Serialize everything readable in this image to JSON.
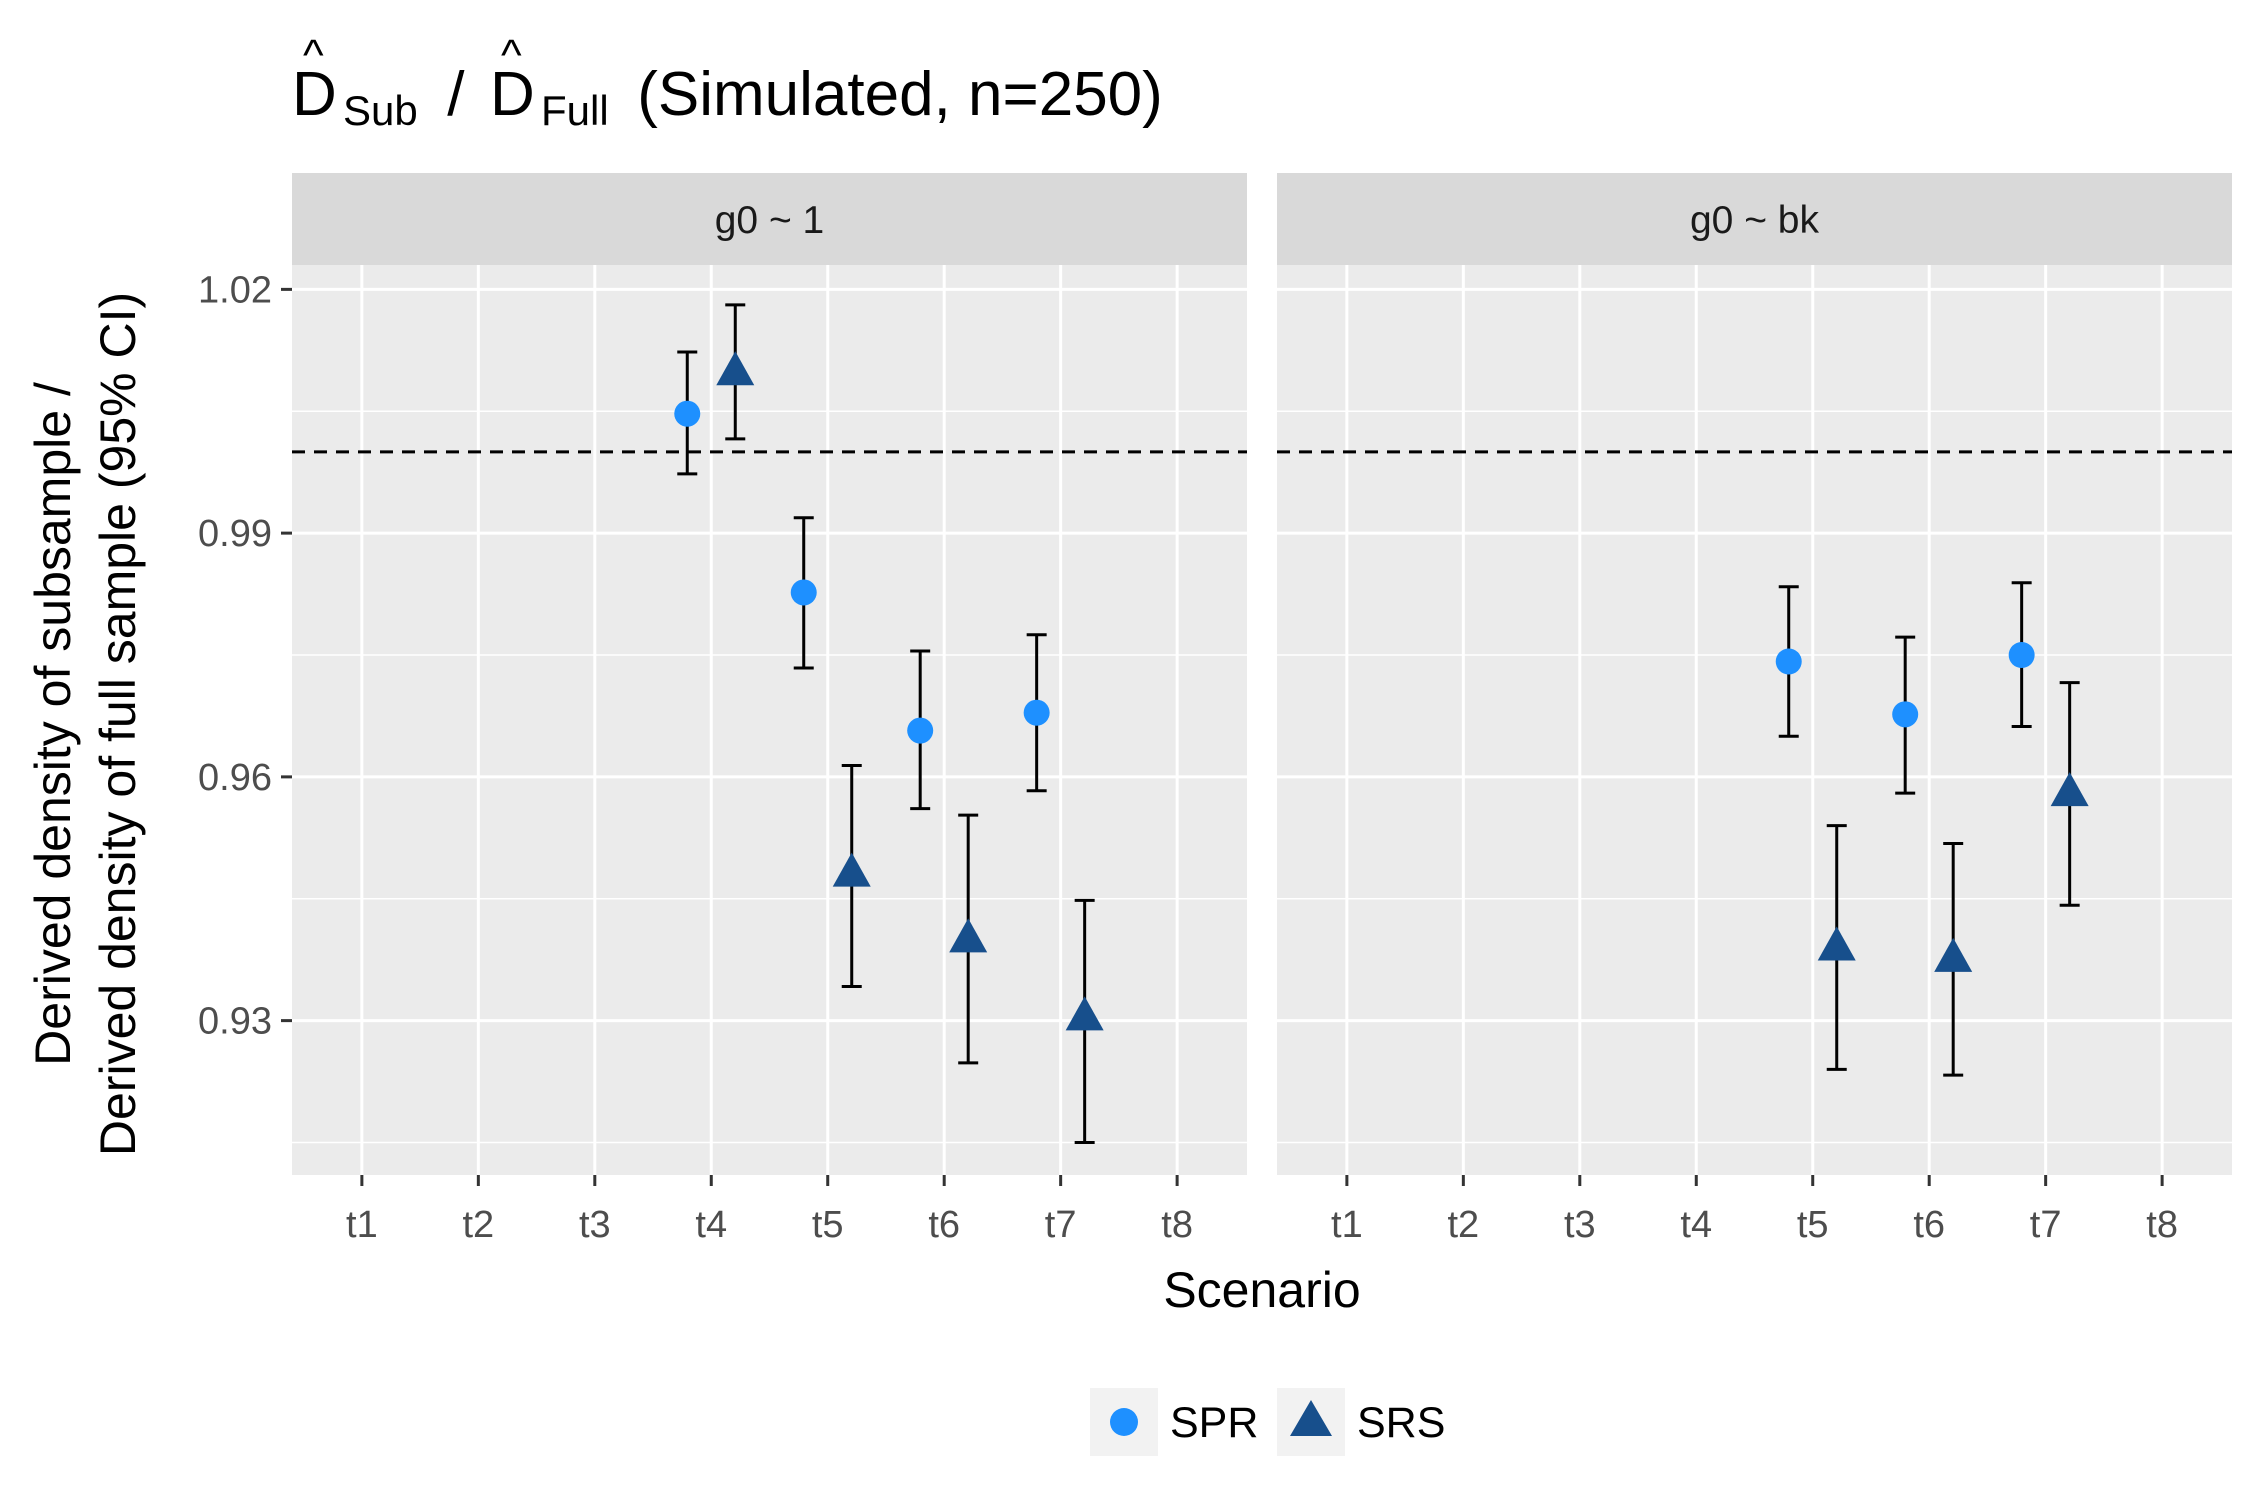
{
  "chart_data": {
    "type": "scatter",
    "title": {
      "symbol": "D",
      "hat": "^",
      "sub1": "Sub",
      "sep": " / ",
      "sub2": "Full",
      "rest": " (Simulated, n=250)"
    },
    "xlabel": "Scenario",
    "ylabel_lines": [
      "Derived density of subsample /",
      "Derived density of full sample (95% CI)"
    ],
    "categories": [
      "t1",
      "t2",
      "t3",
      "t4",
      "t5",
      "t6",
      "t7",
      "t8"
    ],
    "ylim": [
      0.911,
      1.023
    ],
    "yticks": [
      0.93,
      0.96,
      0.99,
      1.02
    ],
    "ytick_labels": [
      "0.93",
      "0.96",
      "0.99",
      "1.02"
    ],
    "reference_line": 1.0,
    "grid": true,
    "legend_position": "bottom",
    "legend": [
      {
        "name": "SPR",
        "shape": "circle",
        "color": "#1e90ff"
      },
      {
        "name": "SRS",
        "shape": "triangle",
        "color": "#174f8c"
      }
    ],
    "panels": [
      {
        "strip": "g0 ~ 1",
        "series": [
          {
            "name": "SPR",
            "points": [
              {
                "x": "t4",
                "y": 1.0047,
                "lo": 0.9973,
                "hi": 1.0123
              },
              {
                "x": "t5",
                "y": 0.9827,
                "lo": 0.9734,
                "hi": 0.9919
              },
              {
                "x": "t6",
                "y": 0.9657,
                "lo": 0.9561,
                "hi": 0.9755
              },
              {
                "x": "t7",
                "y": 0.9679,
                "lo": 0.9583,
                "hi": 0.9775
              }
            ]
          },
          {
            "name": "SRS",
            "points": [
              {
                "x": "t4",
                "y": 1.0098,
                "lo": 1.0016,
                "hi": 1.0181
              },
              {
                "x": "t5",
                "y": 0.9481,
                "lo": 0.9342,
                "hi": 0.9614
              },
              {
                "x": "t6",
                "y": 0.94,
                "lo": 0.9248,
                "hi": 0.9553
              },
              {
                "x": "t7",
                "y": 0.9304,
                "lo": 0.915,
                "hi": 0.9448
              }
            ]
          }
        ]
      },
      {
        "strip": "g0 ~ bk",
        "series": [
          {
            "name": "SPR",
            "points": [
              {
                "x": "t5",
                "y": 0.9742,
                "lo": 0.965,
                "hi": 0.9834
              },
              {
                "x": "t6",
                "y": 0.9677,
                "lo": 0.958,
                "hi": 0.9772
              },
              {
                "x": "t7",
                "y": 0.975,
                "lo": 0.9662,
                "hi": 0.9839
              }
            ]
          },
          {
            "name": "SRS",
            "points": [
              {
                "x": "t5",
                "y": 0.939,
                "lo": 0.924,
                "hi": 0.954
              },
              {
                "x": "t6",
                "y": 0.9376,
                "lo": 0.9233,
                "hi": 0.9518
              },
              {
                "x": "t7",
                "y": 0.958,
                "lo": 0.9442,
                "hi": 0.9716
              }
            ]
          }
        ]
      }
    ]
  }
}
